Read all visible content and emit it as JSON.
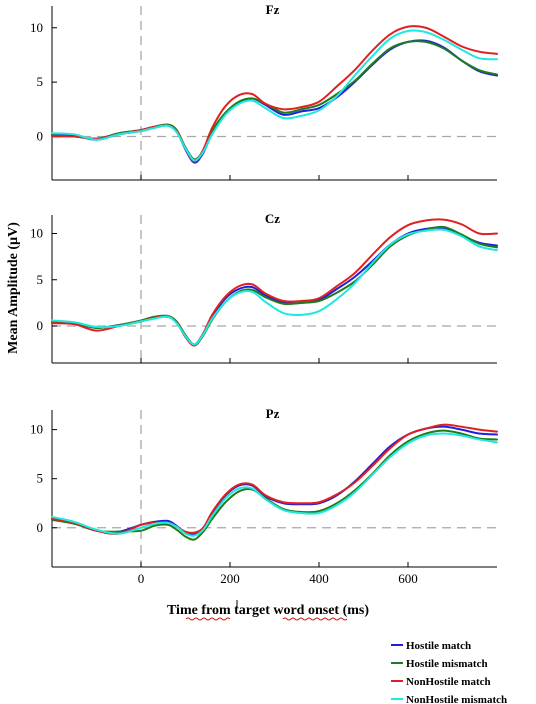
{
  "chart_data": {
    "type": "line",
    "xlabel": "Time from target word onset (ms)",
    "ylabel": "Mean Amplitude (µV)",
    "xlim": [
      -200,
      800
    ],
    "x_ticks": [
      "0",
      "200",
      "400",
      "600"
    ],
    "onset_line_x": 0,
    "zero_baseline_y": 0,
    "grid": false,
    "legend_placement": "bottom-right, below plots",
    "legend": [
      {
        "name": "Hostile match",
        "color": "#1f1fe0"
      },
      {
        "name": "Hostile mismatch",
        "color": "#1e7b1e"
      },
      {
        "name": "NonHostile match",
        "color": "#e02020"
      },
      {
        "name": "NonHostile mismatch",
        "color": "#1ee8e0"
      }
    ],
    "panels": [
      {
        "title": "Fz",
        "ylim": [
          -4,
          12
        ],
        "y_ticks": [
          "0",
          "5",
          "10"
        ],
        "x": [
          -200,
          -150,
          -100,
          -50,
          0,
          30,
          60,
          80,
          100,
          120,
          140,
          160,
          190,
          220,
          250,
          280,
          320,
          360,
          400,
          440,
          480,
          520,
          560,
          600,
          640,
          680,
          720,
          760,
          800
        ],
        "series": [
          {
            "name": "Hostile match",
            "values": [
              0.2,
              0.1,
              -0.3,
              0.2,
              0.5,
              0.8,
              1.0,
              0.5,
              -1.2,
              -2.4,
              -1.5,
              0.3,
              2.1,
              3.1,
              3.5,
              2.9,
              2.0,
              2.3,
              2.6,
              3.6,
              5.0,
              6.6,
              8.0,
              8.7,
              8.8,
              8.2,
              7.0,
              6.0,
              5.6
            ]
          },
          {
            "name": "Hostile mismatch",
            "values": [
              0.1,
              0.0,
              -0.2,
              0.3,
              0.6,
              0.9,
              1.1,
              0.6,
              -1.0,
              -2.1,
              -1.3,
              0.5,
              2.2,
              3.2,
              3.5,
              3.0,
              2.2,
              2.5,
              2.9,
              3.9,
              5.1,
              6.7,
              8.1,
              8.7,
              8.7,
              8.1,
              7.0,
              6.1,
              5.7
            ]
          },
          {
            "name": "NonHostile match",
            "values": [
              0.0,
              0.0,
              -0.2,
              0.2,
              0.6,
              0.9,
              1.0,
              0.5,
              -1.1,
              -2.3,
              -1.2,
              0.8,
              2.8,
              3.8,
              3.9,
              3.0,
              2.5,
              2.7,
              3.2,
              4.6,
              6.1,
              7.9,
              9.4,
              10.1,
              10.0,
              9.2,
              8.3,
              7.8,
              7.6
            ]
          },
          {
            "name": "NonHostile mismatch",
            "values": [
              0.3,
              0.2,
              -0.3,
              0.2,
              0.5,
              0.8,
              1.0,
              0.4,
              -1.1,
              -2.2,
              -1.4,
              0.2,
              2.0,
              3.0,
              3.3,
              2.6,
              1.7,
              1.9,
              2.4,
              3.7,
              5.6,
              7.4,
              9.0,
              9.7,
              9.6,
              8.9,
              8.0,
              7.2,
              7.1
            ]
          }
        ]
      },
      {
        "title": "Cz",
        "ylim": [
          -4,
          12
        ],
        "y_ticks": [
          "0",
          "5",
          "10"
        ],
        "x": [
          -200,
          -150,
          -100,
          -50,
          0,
          30,
          60,
          80,
          100,
          120,
          140,
          160,
          190,
          220,
          250,
          280,
          320,
          360,
          400,
          440,
          480,
          520,
          560,
          600,
          640,
          680,
          720,
          760,
          800
        ],
        "series": [
          {
            "name": "Hostile match",
            "values": [
              0.5,
              0.3,
              -0.2,
              0.1,
              0.5,
              0.9,
              1.0,
              0.4,
              -1.0,
              -2.0,
              -0.8,
              1.0,
              3.0,
              4.0,
              4.2,
              3.3,
              2.5,
              2.5,
              2.8,
              4.0,
              5.3,
              7.0,
              8.8,
              10.0,
              10.5,
              10.6,
              9.8,
              9.0,
              8.7
            ]
          },
          {
            "name": "Hostile mismatch",
            "values": [
              0.4,
              0.3,
              -0.2,
              0.1,
              0.6,
              1.0,
              1.1,
              0.5,
              -1.0,
              -2.1,
              -1.0,
              0.7,
              2.6,
              3.7,
              3.9,
              3.1,
              2.4,
              2.5,
              2.7,
              3.6,
              4.8,
              6.6,
              8.6,
              9.8,
              10.4,
              10.7,
              9.9,
              8.9,
              8.5
            ]
          },
          {
            "name": "NonHostile match",
            "values": [
              0.3,
              0.2,
              -0.5,
              0.0,
              0.5,
              0.9,
              1.0,
              0.4,
              -1.2,
              -2.1,
              -0.8,
              1.2,
              3.2,
              4.3,
              4.5,
              3.5,
              2.7,
              2.7,
              3.0,
              4.3,
              5.7,
              7.7,
              9.6,
              10.9,
              11.4,
              11.5,
              11.0,
              10.0,
              10.0
            ]
          },
          {
            "name": "NonHostile mismatch",
            "values": [
              0.6,
              0.4,
              -0.1,
              0.0,
              0.5,
              0.8,
              1.0,
              0.3,
              -1.1,
              -2.0,
              -0.9,
              0.8,
              2.6,
              3.6,
              3.7,
              2.6,
              1.4,
              1.2,
              1.6,
              2.9,
              4.6,
              6.8,
              8.8,
              9.9,
              10.3,
              10.4,
              9.7,
              8.6,
              8.2
            ]
          }
        ]
      },
      {
        "title": "Pz",
        "ylim": [
          -4,
          12
        ],
        "y_ticks": [
          "0",
          "5",
          "10"
        ],
        "x": [
          -200,
          -150,
          -100,
          -50,
          0,
          30,
          60,
          80,
          100,
          120,
          140,
          160,
          190,
          220,
          250,
          280,
          320,
          360,
          400,
          440,
          480,
          520,
          560,
          600,
          640,
          680,
          720,
          760,
          800
        ],
        "series": [
          {
            "name": "Hostile match",
            "values": [
              1.0,
              0.5,
              -0.3,
              -0.4,
              0.3,
              0.6,
              0.7,
              0.2,
              -0.5,
              -0.6,
              0.0,
              1.5,
              3.3,
              4.3,
              4.3,
              3.2,
              2.5,
              2.4,
              2.5,
              3.3,
              4.7,
              6.5,
              8.3,
              9.5,
              10.1,
              10.3,
              10.0,
              9.6,
              9.5
            ]
          },
          {
            "name": "Hostile mismatch",
            "values": [
              0.8,
              0.4,
              -0.3,
              -0.4,
              -0.3,
              0.2,
              0.3,
              -0.2,
              -0.9,
              -1.2,
              -0.4,
              0.9,
              2.6,
              3.7,
              3.9,
              3.0,
              1.9,
              1.6,
              1.7,
              2.5,
              3.8,
              5.5,
              7.4,
              8.8,
              9.6,
              9.9,
              9.6,
              9.1,
              9.0
            ]
          },
          {
            "name": "NonHostile match",
            "values": [
              0.9,
              0.5,
              -0.3,
              -0.6,
              0.3,
              0.5,
              0.5,
              0.1,
              -0.4,
              -0.5,
              0.0,
              1.6,
              3.4,
              4.4,
              4.4,
              3.3,
              2.6,
              2.5,
              2.6,
              3.4,
              4.6,
              6.3,
              8.1,
              9.5,
              10.1,
              10.5,
              10.3,
              10.0,
              9.8
            ]
          },
          {
            "name": "NonHostile mismatch",
            "values": [
              1.1,
              0.6,
              -0.2,
              -0.6,
              0.0,
              0.4,
              0.5,
              0.1,
              -0.6,
              -0.8,
              -0.2,
              1.2,
              3.0,
              4.0,
              4.0,
              2.9,
              1.8,
              1.5,
              1.5,
              2.3,
              3.6,
              5.4,
              7.2,
              8.6,
              9.4,
              9.6,
              9.4,
              9.0,
              8.7
            ]
          }
        ]
      }
    ]
  }
}
